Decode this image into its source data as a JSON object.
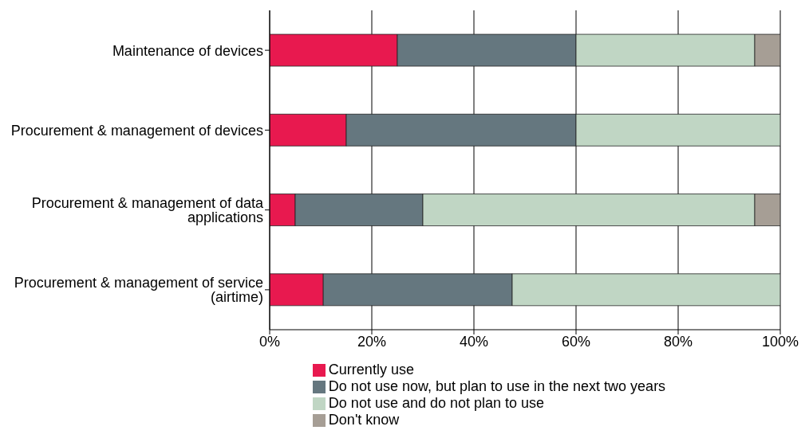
{
  "chart_data": {
    "type": "bar",
    "orientation": "horizontal",
    "stacked": true,
    "categories": [
      "Maintenance of devices",
      "Procurement & management of devices",
      "Procurement & management of data applications",
      "Procurement & management of service (airtime)"
    ],
    "series": [
      {
        "name": "Currently use",
        "color": "#e8194f",
        "values": [
          25,
          15,
          5,
          10.5
        ]
      },
      {
        "name": "Do not use now, but plan to use in the next two years",
        "color": "#65777f",
        "values": [
          35,
          45,
          25,
          37
        ]
      },
      {
        "name": "Do not use and do not plan to use",
        "color": "#c0d6c4",
        "values": [
          35,
          40,
          65,
          52.5
        ]
      },
      {
        "name": "Don't know",
        "color": "#a69e95",
        "values": [
          5,
          null,
          5,
          null
        ]
      }
    ],
    "xlim": [
      0,
      100
    ],
    "xticks": [
      {
        "value": 0,
        "label": "0%"
      },
      {
        "value": 20,
        "label": "20%"
      },
      {
        "value": 40,
        "label": "40%"
      },
      {
        "value": 60,
        "label": "60%"
      },
      {
        "value": 80,
        "label": "80%"
      },
      {
        "value": 100,
        "label": "100%"
      }
    ],
    "grid": "x",
    "legend": "bottom"
  }
}
